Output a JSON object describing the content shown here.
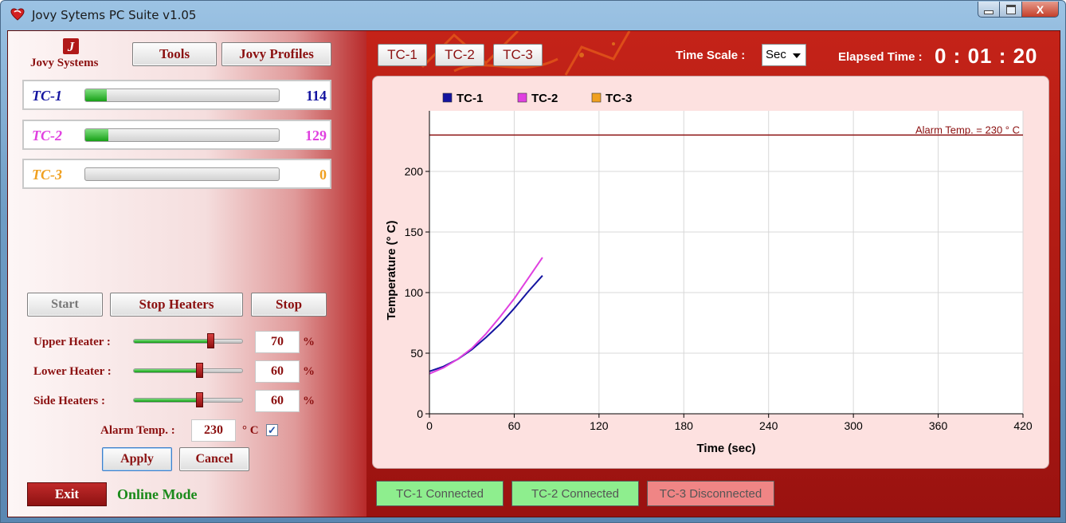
{
  "window": {
    "title": "Jovy Sytems PC Suite v1.05",
    "controls": {
      "minimize": "—",
      "maximize": "▭",
      "close": "X"
    }
  },
  "logo": {
    "text": "Jovy Systems",
    "glyph": "J"
  },
  "toolbar": {
    "tools_label": "Tools",
    "profiles_label": "Jovy Profiles"
  },
  "thermocouples": [
    {
      "name": "TC-1",
      "value": "114",
      "level": 0.11,
      "color": "#1414a0"
    },
    {
      "name": "TC-2",
      "value": "129",
      "level": 0.12,
      "color": "#e040e0"
    },
    {
      "name": "TC-3",
      "value": "0",
      "level": 0,
      "color": "#f0a020"
    }
  ],
  "controls": {
    "start_label": "Start",
    "stop_heaters_label": "Stop Heaters",
    "stop_label": "Stop",
    "apply_label": "Apply",
    "cancel_label": "Cancel",
    "exit_label": "Exit",
    "mode_label": "Online Mode"
  },
  "heaters": [
    {
      "label": "Upper Heater :",
      "value": "70",
      "unit": "%",
      "level": 0.7
    },
    {
      "label": "Lower Heater :",
      "value": "60",
      "unit": "%",
      "level": 0.6
    },
    {
      "label": "Side Heaters :",
      "value": "60",
      "unit": "%",
      "level": 0.6
    }
  ],
  "alarm": {
    "label": "Alarm Temp. :",
    "value": "230",
    "unit": "° C",
    "checked": true
  },
  "header": {
    "tabs": [
      "TC-1",
      "TC-2",
      "TC-3"
    ],
    "time_scale_label": "Time Scale :",
    "time_scale_value": "Sec",
    "elapsed_label": "Elapsed Time :",
    "elapsed_value": "0 : 01 : 20"
  },
  "status_bar": [
    {
      "label": "TC-1 Connected",
      "state": "connected",
      "color": "#8eee8e"
    },
    {
      "label": "TC-2 Connected",
      "state": "connected",
      "color": "#8eee8e"
    },
    {
      "label": "TC-3 Disconnected",
      "state": "disconnected",
      "color": "#f08585"
    }
  ],
  "chart_data": {
    "type": "line",
    "xlabel": "Time  (sec)",
    "ylabel": "Temperature (° C)",
    "xlim": [
      0,
      420
    ],
    "ylim": [
      0,
      230
    ],
    "x_ticks": [
      0,
      60,
      120,
      180,
      240,
      300,
      360,
      420
    ],
    "y_ticks": [
      0,
      50,
      100,
      150,
      200
    ],
    "grid": true,
    "legend_position": "top-left",
    "alarm_line": {
      "value": 230,
      "label": "Alarm Temp. = 230 ° C",
      "color": "#8b1010"
    },
    "series": [
      {
        "name": "TC-1",
        "color": "#1414a0",
        "x": [
          0,
          10,
          20,
          30,
          40,
          50,
          60,
          70,
          80
        ],
        "y": [
          35,
          39,
          45,
          53,
          63,
          74,
          87,
          101,
          114
        ]
      },
      {
        "name": "TC-2",
        "color": "#e040e0",
        "x": [
          0,
          10,
          20,
          30,
          40,
          50,
          60,
          70,
          80
        ],
        "y": [
          33,
          38,
          45,
          54,
          66,
          80,
          95,
          112,
          129
        ]
      },
      {
        "name": "TC-3",
        "color": "#f0a020",
        "x": [],
        "y": []
      }
    ]
  }
}
